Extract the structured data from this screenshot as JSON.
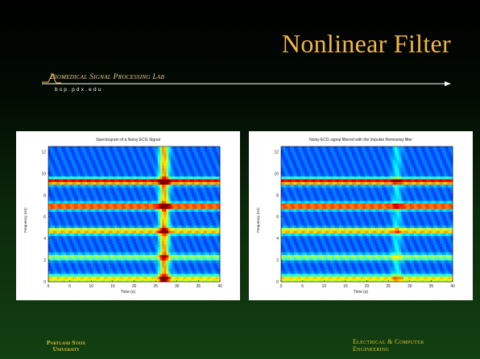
{
  "slide": {
    "title": "Nonlinear Filter",
    "lab_name": "Biomedical Signal Processing Lab",
    "lab_url": "bsp.pdx.edu"
  },
  "footer": {
    "left_line1": "Portland State",
    "left_line2": "University",
    "right_line1": "Electrical & Computer",
    "right_line2": "Engineering"
  },
  "plots": {
    "left": {
      "title": "Spectrogram of a Noisy ECG Signal",
      "xlabel": "Time (s)",
      "ylabel": "Frequency (Hz)"
    },
    "right": {
      "title": "Noisy ECG signal filtered with the Impulse Removing filter",
      "xlabel": "Time (s)",
      "ylabel": "Frequency (Hz)"
    }
  },
  "chart_data": [
    {
      "type": "heatmap",
      "title": "Spectrogram of a Noisy ECG Signal",
      "xlabel": "Time (s)",
      "ylabel": "Frequency (Hz)",
      "xlim": [
        0,
        40
      ],
      "ylim": [
        0,
        12.5
      ],
      "xticks": [
        0,
        5,
        10,
        15,
        20,
        25,
        30,
        35,
        40
      ],
      "yticks": [
        0,
        2,
        4,
        6,
        8,
        10,
        12
      ],
      "harmonic_bands_hz": [
        9.3,
        7.0,
        4.7,
        2.3
      ],
      "band_intensity": [
        1.0,
        0.95,
        0.7,
        0.45
      ],
      "low_freq_band_hz": 0.3,
      "impulse_time_s": 27,
      "impulse_intensity": 0.9
    },
    {
      "type": "heatmap",
      "title": "Noisy ECG signal filtered with the Impulse Removing filter",
      "xlabel": "Time (s)",
      "ylabel": "Frequency (Hz)",
      "xlim": [
        0,
        40
      ],
      "ylim": [
        0,
        12.5
      ],
      "xticks": [
        0,
        5,
        10,
        15,
        20,
        25,
        30,
        35,
        40
      ],
      "yticks": [
        0,
        2,
        4,
        6,
        8,
        10,
        12
      ],
      "harmonic_bands_hz": [
        9.3,
        7.0,
        4.7,
        2.3
      ],
      "band_intensity": [
        1.0,
        0.95,
        0.7,
        0.45
      ],
      "low_freq_band_hz": 0.3,
      "impulse_time_s": 27,
      "impulse_intensity": 0.25
    }
  ]
}
